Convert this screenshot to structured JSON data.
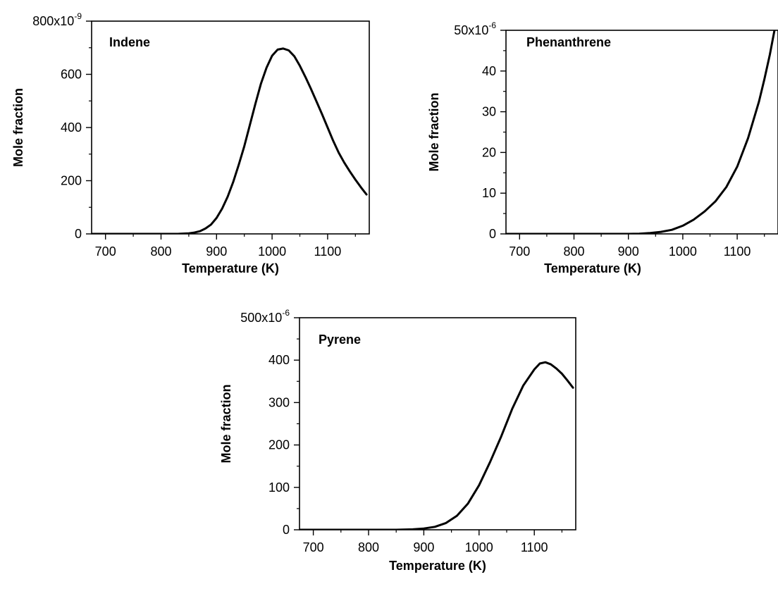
{
  "chart_data": [
    {
      "type": "line",
      "title": "Indene",
      "xlabel": "Temperature (K)",
      "ylabel": "Mole fraction",
      "xlim": [
        675,
        1175
      ],
      "ylim": [
        0,
        800
      ],
      "y_scale_label": {
        "base": "800x10",
        "exponent": "-9"
      },
      "x_ticks": [
        "700",
        "800",
        "900",
        "1000",
        "1100"
      ],
      "y_ticks": [
        "0",
        "200",
        "400",
        "600"
      ],
      "series": [
        {
          "x": [
            675,
            700,
            750,
            800,
            830,
            850,
            860,
            870,
            880,
            890,
            900,
            910,
            920,
            930,
            940,
            950,
            960,
            970,
            980,
            990,
            1000,
            1010,
            1020,
            1030,
            1040,
            1050,
            1060,
            1070,
            1080,
            1090,
            1100,
            1110,
            1120,
            1130,
            1140,
            1150,
            1160,
            1170
          ],
          "values": [
            0,
            0,
            0,
            0,
            0,
            2,
            5,
            10,
            20,
            35,
            60,
            95,
            140,
            195,
            260,
            330,
            410,
            490,
            565,
            625,
            670,
            693,
            697,
            690,
            668,
            632,
            590,
            545,
            498,
            450,
            400,
            350,
            305,
            268,
            235,
            204,
            175,
            148
          ]
        }
      ]
    },
    {
      "type": "line",
      "title": "Phenanthrene",
      "xlabel": "Temperature (K)",
      "ylabel": "Mole fraction",
      "xlim": [
        675,
        1175
      ],
      "ylim": [
        0,
        50
      ],
      "y_scale_label": {
        "base": "50x10",
        "exponent": "-6"
      },
      "x_ticks": [
        "700",
        "800",
        "900",
        "1000",
        "1100"
      ],
      "y_ticks": [
        "0",
        "10",
        "20",
        "30",
        "40"
      ],
      "series": [
        {
          "x": [
            675,
            700,
            750,
            800,
            850,
            900,
            920,
            940,
            960,
            980,
            1000,
            1020,
            1040,
            1060,
            1080,
            1100,
            1120,
            1140,
            1150,
            1160,
            1170,
            1175
          ],
          "values": [
            0,
            0,
            0,
            0,
            0,
            0,
            0.05,
            0.2,
            0.5,
            1.0,
            2.0,
            3.5,
            5.5,
            8.0,
            11.5,
            16.5,
            23.5,
            32.5,
            38,
            44,
            51,
            54
          ]
        }
      ]
    },
    {
      "type": "line",
      "title": "Pyrene",
      "xlabel": "Temperature (K)",
      "ylabel": "Mole fraction",
      "xlim": [
        675,
        1175
      ],
      "ylim": [
        0,
        500
      ],
      "y_scale_label": {
        "base": "500x10",
        "exponent": "-6"
      },
      "x_ticks": [
        "700",
        "800",
        "900",
        "1000",
        "1100"
      ],
      "y_ticks": [
        "0",
        "100",
        "200",
        "300",
        "400"
      ],
      "series": [
        {
          "x": [
            675,
            700,
            750,
            800,
            850,
            880,
            900,
            920,
            940,
            960,
            980,
            1000,
            1020,
            1040,
            1060,
            1080,
            1100,
            1110,
            1120,
            1130,
            1140,
            1150,
            1160,
            1170
          ],
          "values": [
            0,
            0,
            0,
            0,
            0,
            1,
            3,
            7,
            16,
            33,
            62,
            105,
            160,
            220,
            285,
            340,
            378,
            392,
            395,
            390,
            380,
            368,
            352,
            335
          ]
        }
      ]
    }
  ]
}
